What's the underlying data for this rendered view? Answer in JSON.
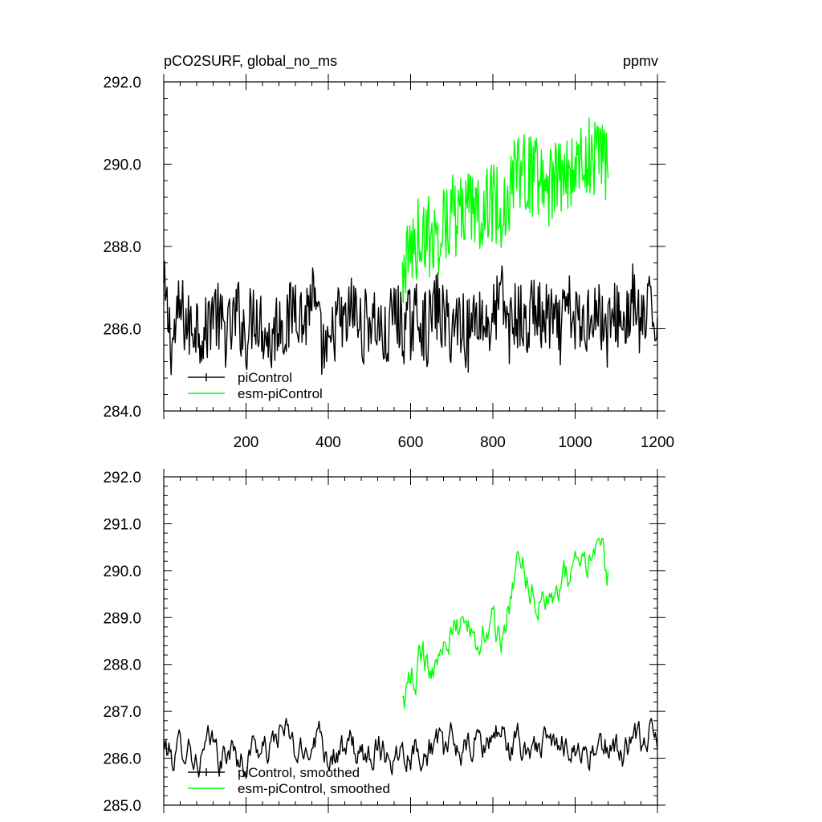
{
  "header": {
    "title_left": "pCO2SURF, global_no_ms",
    "title_right": "ppmv"
  },
  "colors": {
    "piControl": "#000000",
    "esm_piControl": "#00ff00",
    "axes": "#000000",
    "background": "#ffffff"
  },
  "chart_data": [
    {
      "type": "line",
      "title": "pCO2SURF, global_no_ms",
      "units": "ppmv",
      "xlim": [
        0,
        1200
      ],
      "ylim": [
        284.0,
        292.0
      ],
      "x_ticks": [
        200,
        400,
        600,
        800,
        1000,
        1200
      ],
      "y_ticks": [
        "284.0",
        "286.0",
        "288.0",
        "290.0",
        "292.0"
      ],
      "y_tick_values": [
        284,
        286,
        288,
        290,
        292
      ],
      "legend_placement": "bottom-left",
      "grid": false,
      "series": [
        {
          "name": "piControl",
          "color": "#000000",
          "x_range": [
            0,
            1200
          ],
          "keypoints": [
            [
              0,
              286.9
            ],
            [
              20,
              285.6
            ],
            [
              40,
              286.5
            ],
            [
              60,
              286.0
            ],
            [
              80,
              286.2
            ],
            [
              100,
              285.8
            ],
            [
              120,
              286.6
            ],
            [
              140,
              286.0
            ],
            [
              160,
              285.9
            ],
            [
              180,
              286.4
            ],
            [
              200,
              285.8
            ],
            [
              220,
              286.5
            ],
            [
              240,
              286.1
            ],
            [
              260,
              285.6
            ],
            [
              280,
              286.3
            ],
            [
              300,
              286.0
            ],
            [
              320,
              286.8
            ],
            [
              340,
              286.1
            ],
            [
              360,
              286.9
            ],
            [
              380,
              285.7
            ],
            [
              400,
              285.2
            ],
            [
              420,
              286.3
            ],
            [
              440,
              286.0
            ],
            [
              460,
              286.6
            ],
            [
              480,
              285.9
            ],
            [
              500,
              286.3
            ],
            [
              520,
              286.1
            ],
            [
              540,
              285.6
            ],
            [
              560,
              286.5
            ],
            [
              580,
              286.0
            ],
            [
              600,
              286.1
            ],
            [
              620,
              286.4
            ],
            [
              640,
              285.9
            ],
            [
              660,
              286.6
            ],
            [
              680,
              286.2
            ],
            [
              700,
              286.0
            ],
            [
              720,
              286.3
            ],
            [
              740,
              285.8
            ],
            [
              760,
              286.5
            ],
            [
              780,
              286.1
            ],
            [
              800,
              286.2
            ],
            [
              820,
              286.8
            ],
            [
              840,
              286.0
            ],
            [
              860,
              286.4
            ],
            [
              880,
              285.9
            ],
            [
              900,
              286.6
            ],
            [
              920,
              286.1
            ],
            [
              940,
              286.3
            ],
            [
              960,
              285.8
            ],
            [
              980,
              286.5
            ],
            [
              1000,
              286.2
            ],
            [
              1020,
              286.0
            ],
            [
              1040,
              286.6
            ],
            [
              1060,
              286.3
            ],
            [
              1080,
              285.9
            ],
            [
              1100,
              286.4
            ],
            [
              1120,
              286.1
            ],
            [
              1140,
              286.7
            ],
            [
              1160,
              286.0
            ],
            [
              1180,
              286.4
            ],
            [
              1200,
              286.2
            ]
          ],
          "noise_amplitude": 0.9
        },
        {
          "name": "esm-piControl",
          "color": "#00ff00",
          "x_range": [
            580,
            1080
          ],
          "keypoints": [
            [
              580,
              287.3
            ],
            [
              600,
              287.9
            ],
            [
              620,
              288.2
            ],
            [
              640,
              288.3
            ],
            [
              660,
              288.1
            ],
            [
              680,
              288.6
            ],
            [
              700,
              288.8
            ],
            [
              720,
              288.7
            ],
            [
              740,
              288.9
            ],
            [
              760,
              288.8
            ],
            [
              780,
              289.1
            ],
            [
              800,
              289.0
            ],
            [
              820,
              288.9
            ],
            [
              840,
              289.3
            ],
            [
              860,
              289.9
            ],
            [
              880,
              289.9
            ],
            [
              900,
              289.6
            ],
            [
              920,
              289.8
            ],
            [
              940,
              289.4
            ],
            [
              960,
              289.7
            ],
            [
              980,
              289.9
            ],
            [
              1000,
              289.8
            ],
            [
              1020,
              290.2
            ],
            [
              1040,
              290.1
            ],
            [
              1060,
              290.3
            ],
            [
              1080,
              289.9
            ]
          ],
          "noise_amplitude": 1.0
        }
      ]
    },
    {
      "type": "line",
      "xlim": [
        0,
        1200
      ],
      "ylim": [
        285.0,
        292.0
      ],
      "y_ticks": [
        "285.0",
        "286.0",
        "287.0",
        "288.0",
        "289.0",
        "290.0",
        "291.0",
        "292.0"
      ],
      "y_tick_values": [
        285,
        286,
        287,
        288,
        289,
        290,
        291,
        292
      ],
      "legend_placement": "bottom-left",
      "grid": false,
      "series": [
        {
          "name": "piControl, smoothed",
          "color": "#000000",
          "x_range": [
            0,
            1200
          ],
          "keypoints": [
            [
              0,
              286.3
            ],
            [
              20,
              286.0
            ],
            [
              40,
              286.2
            ],
            [
              60,
              286.4
            ],
            [
              80,
              285.9
            ],
            [
              100,
              286.1
            ],
            [
              120,
              286.3
            ],
            [
              140,
              285.9
            ],
            [
              160,
              286.2
            ],
            [
              180,
              286.0
            ],
            [
              200,
              285.9
            ],
            [
              220,
              286.4
            ],
            [
              240,
              286.1
            ],
            [
              260,
              286.2
            ],
            [
              280,
              286.6
            ],
            [
              300,
              286.5
            ],
            [
              320,
              286.1
            ],
            [
              340,
              286.0
            ],
            [
              360,
              286.5
            ],
            [
              380,
              286.6
            ],
            [
              400,
              286.1
            ],
            [
              420,
              286.2
            ],
            [
              440,
              286.0
            ],
            [
              460,
              286.3
            ],
            [
              480,
              285.9
            ],
            [
              500,
              286.1
            ],
            [
              520,
              286.4
            ],
            [
              540,
              286.2
            ],
            [
              560,
              286.0
            ],
            [
              580,
              286.3
            ],
            [
              600,
              286.2
            ],
            [
              620,
              286.3
            ],
            [
              640,
              286.1
            ],
            [
              660,
              286.4
            ],
            [
              680,
              286.0
            ],
            [
              700,
              286.3
            ],
            [
              720,
              286.2
            ],
            [
              740,
              286.1
            ],
            [
              760,
              286.4
            ],
            [
              780,
              286.2
            ],
            [
              800,
              286.5
            ],
            [
              820,
              286.6
            ],
            [
              840,
              286.2
            ],
            [
              860,
              286.3
            ],
            [
              880,
              286.1
            ],
            [
              900,
              286.4
            ],
            [
              920,
              286.2
            ],
            [
              940,
              286.3
            ],
            [
              960,
              286.1
            ],
            [
              980,
              286.4
            ],
            [
              1000,
              286.3
            ],
            [
              1020,
              286.1
            ],
            [
              1040,
              286.2
            ],
            [
              1060,
              286.0
            ],
            [
              1080,
              286.3
            ],
            [
              1100,
              286.2
            ],
            [
              1120,
              286.1
            ],
            [
              1140,
              286.4
            ],
            [
              1160,
              286.2
            ],
            [
              1180,
              286.5
            ],
            [
              1200,
              286.3
            ]
          ],
          "noise_amplitude": 0.45
        },
        {
          "name": "esm-piControl, smoothed",
          "color": "#00ff00",
          "x_range": [
            580,
            1080
          ],
          "keypoints": [
            [
              580,
              287.2
            ],
            [
              600,
              287.6
            ],
            [
              620,
              288.0
            ],
            [
              640,
              288.1
            ],
            [
              660,
              288.2
            ],
            [
              680,
              288.4
            ],
            [
              700,
              288.7
            ],
            [
              720,
              288.6
            ],
            [
              740,
              288.7
            ],
            [
              760,
              288.6
            ],
            [
              780,
              288.8
            ],
            [
              800,
              288.9
            ],
            [
              820,
              288.6
            ],
            [
              840,
              289.2
            ],
            [
              860,
              290.0
            ],
            [
              880,
              289.9
            ],
            [
              900,
              289.5
            ],
            [
              920,
              289.6
            ],
            [
              940,
              289.3
            ],
            [
              960,
              289.7
            ],
            [
              980,
              290.0
            ],
            [
              1000,
              289.9
            ],
            [
              1020,
              290.2
            ],
            [
              1040,
              290.1
            ],
            [
              1060,
              290.7
            ],
            [
              1080,
              289.9
            ]
          ],
          "noise_amplitude": 0.5
        }
      ]
    }
  ]
}
